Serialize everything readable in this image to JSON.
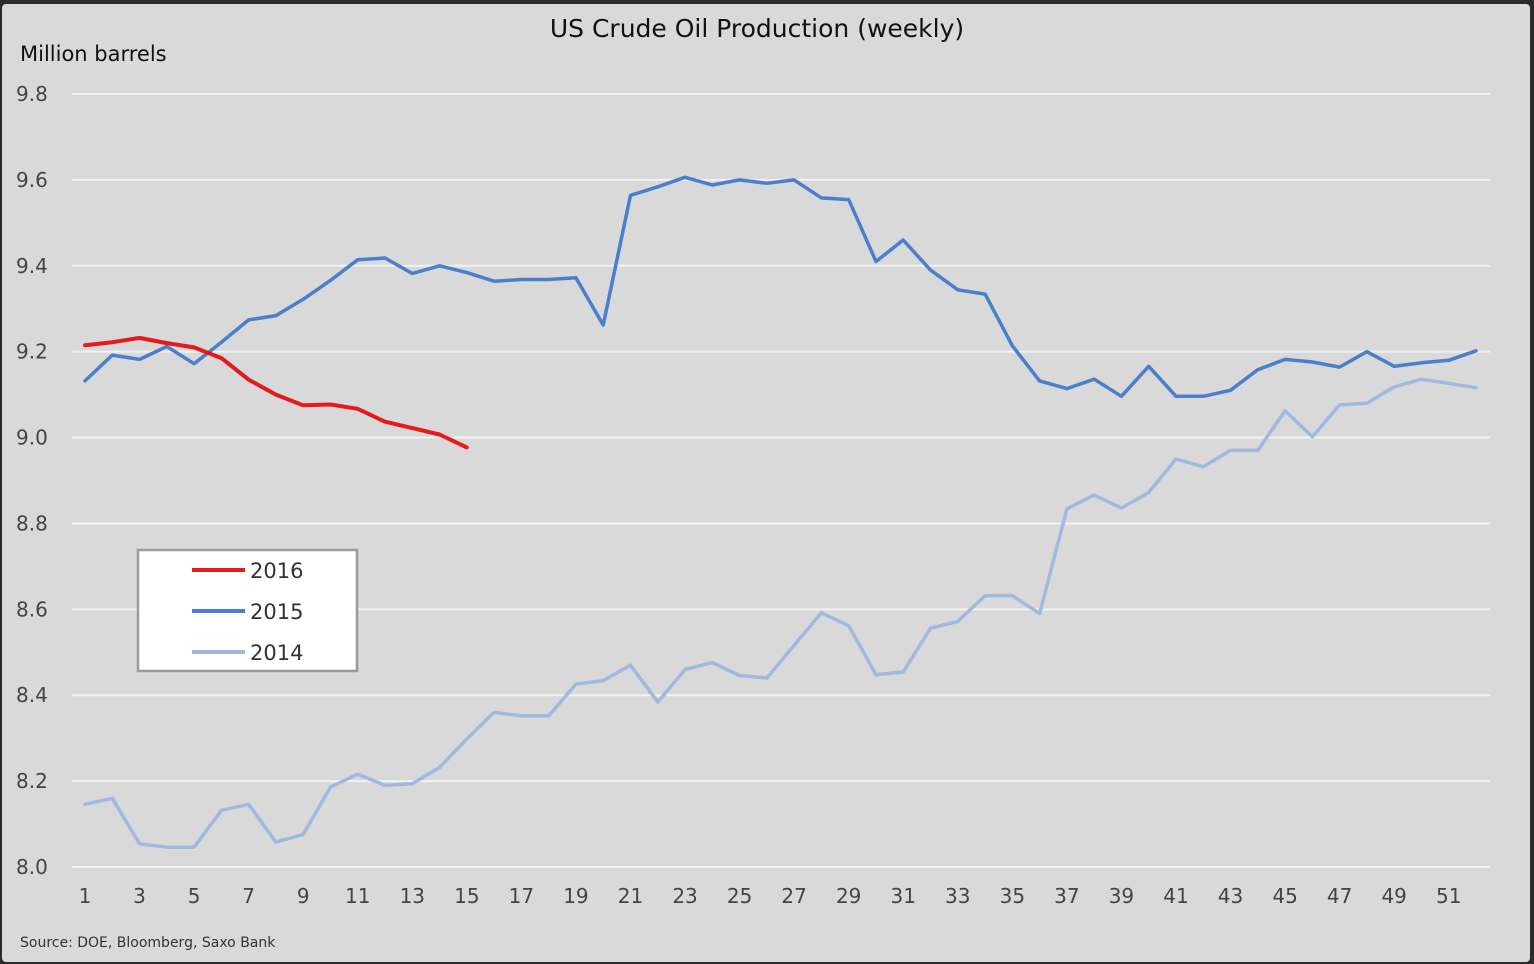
{
  "chart_data": {
    "type": "line",
    "title": "US Crude Oil Production (weekly)",
    "ylabel": "Million barrels",
    "xlabel": "",
    "source": "Source: DOE, Bloomberg, Saxo Bank",
    "ylim": [
      8.0,
      9.8
    ],
    "xlim": [
      1,
      52
    ],
    "yticks": [
      "8.0",
      "8.2",
      "8.4",
      "8.6",
      "8.8",
      "9.0",
      "9.2",
      "9.4",
      "9.6",
      "9.8"
    ],
    "xticks": [
      "1",
      "3",
      "5",
      "7",
      "9",
      "11",
      "13",
      "15",
      "17",
      "19",
      "21",
      "23",
      "25",
      "27",
      "29",
      "31",
      "33",
      "35",
      "37",
      "39",
      "41",
      "43",
      "45",
      "47",
      "49",
      "51"
    ],
    "grid": true,
    "legend_position": "lower-left",
    "series": [
      {
        "name": "2016",
        "color": "#e41a1c",
        "x": [
          1,
          2,
          3,
          4,
          5,
          6,
          7,
          8,
          9,
          10,
          11,
          12,
          13,
          14,
          15
        ],
        "values": [
          9.215,
          9.222,
          9.232,
          9.22,
          9.21,
          9.185,
          9.135,
          9.1,
          9.075,
          9.077,
          9.067,
          9.037,
          9.022,
          9.007,
          8.977
        ]
      },
      {
        "name": "2015",
        "color": "#4a7fcd",
        "x": [
          1,
          2,
          3,
          4,
          5,
          6,
          7,
          8,
          9,
          10,
          11,
          12,
          13,
          14,
          15,
          16,
          17,
          18,
          19,
          20,
          21,
          22,
          23,
          24,
          25,
          26,
          27,
          28,
          29,
          30,
          31,
          32,
          33,
          34,
          35,
          36,
          37,
          38,
          39,
          40,
          41,
          42,
          43,
          44,
          45,
          46,
          47,
          48,
          49,
          50,
          51,
          52
        ],
        "values": [
          9.132,
          9.192,
          9.182,
          9.212,
          9.172,
          9.222,
          9.274,
          9.284,
          9.322,
          9.366,
          9.414,
          9.418,
          9.382,
          9.4,
          9.384,
          9.364,
          9.368,
          9.368,
          9.372,
          9.262,
          9.564,
          9.584,
          9.606,
          9.588,
          9.6,
          9.592,
          9.6,
          9.558,
          9.554,
          9.41,
          9.46,
          9.39,
          9.344,
          9.334,
          9.214,
          9.132,
          9.114,
          9.136,
          9.096,
          9.166,
          9.096,
          9.096,
          9.11,
          9.158,
          9.182,
          9.176,
          9.164,
          9.2,
          9.166,
          9.174,
          9.18,
          9.202
        ]
      },
      {
        "name": "2014",
        "color": "#a0b9e0",
        "x": [
          1,
          2,
          3,
          4,
          5,
          6,
          7,
          8,
          9,
          10,
          11,
          12,
          13,
          14,
          15,
          16,
          17,
          18,
          19,
          20,
          21,
          22,
          23,
          24,
          25,
          26,
          27,
          28,
          29,
          30,
          31,
          32,
          33,
          34,
          35,
          36,
          37,
          38,
          39,
          40,
          41,
          42,
          43,
          44,
          45,
          46,
          47,
          48,
          49,
          50,
          51,
          52
        ],
        "values": [
          8.146,
          8.16,
          8.054,
          8.046,
          8.046,
          8.132,
          8.146,
          8.058,
          8.076,
          8.186,
          8.216,
          8.19,
          8.194,
          8.232,
          8.298,
          8.36,
          8.352,
          8.352,
          8.426,
          8.434,
          8.47,
          8.384,
          8.46,
          8.476,
          8.446,
          8.44,
          8.516,
          8.592,
          8.562,
          8.448,
          8.454,
          8.556,
          8.572,
          8.632,
          8.632,
          8.59,
          8.834,
          8.866,
          8.836,
          8.872,
          8.95,
          8.932,
          8.97,
          8.97,
          9.062,
          9.002,
          9.076,
          9.08,
          9.118,
          9.136,
          9.126,
          9.116
        ]
      }
    ]
  }
}
